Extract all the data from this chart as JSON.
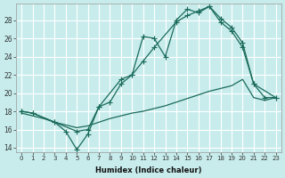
{
  "xlabel": "Humidex (Indice chaleur)",
  "bg_color": "#c8ecec",
  "grid_color": "#ffffff",
  "line_color": "#1a6b5a",
  "xlim": [
    -0.5,
    23.5
  ],
  "ylim": [
    13.5,
    29.8
  ],
  "xticks": [
    0,
    1,
    2,
    3,
    4,
    5,
    6,
    7,
    8,
    9,
    10,
    11,
    12,
    13,
    14,
    15,
    16,
    17,
    18,
    19,
    20,
    21,
    22,
    23
  ],
  "yticks": [
    14,
    16,
    18,
    20,
    22,
    24,
    26,
    28
  ],
  "line1_x": [
    0,
    1,
    3,
    4,
    5,
    6,
    7,
    8,
    9,
    10,
    11,
    12,
    13,
    14,
    15,
    16,
    17,
    18,
    19,
    20,
    21,
    22,
    23
  ],
  "line1_y": [
    18.0,
    17.8,
    16.8,
    15.8,
    13.8,
    15.5,
    18.5,
    19.0,
    21.0,
    22.0,
    26.2,
    26.0,
    24.0,
    28.0,
    29.2,
    28.8,
    29.5,
    28.2,
    27.2,
    25.5,
    21.0,
    19.5,
    19.5
  ],
  "line2_x": [
    0,
    1,
    3,
    5,
    6,
    7,
    9,
    10,
    11,
    12,
    14,
    15,
    16,
    17,
    18,
    19,
    20,
    21,
    23
  ],
  "line2_y": [
    18.0,
    17.8,
    16.8,
    15.8,
    16.0,
    18.5,
    21.5,
    22.0,
    23.5,
    25.0,
    27.8,
    28.5,
    29.0,
    29.5,
    27.8,
    26.8,
    25.0,
    21.0,
    19.5
  ],
  "line3_x": [
    0,
    1,
    2,
    3,
    4,
    5,
    6,
    7,
    8,
    9,
    10,
    11,
    12,
    13,
    14,
    15,
    16,
    17,
    18,
    19,
    20,
    21,
    22,
    23
  ],
  "line3_y": [
    17.8,
    17.5,
    17.2,
    16.8,
    16.5,
    16.2,
    16.4,
    16.8,
    17.2,
    17.5,
    17.8,
    18.0,
    18.3,
    18.6,
    19.0,
    19.4,
    19.8,
    20.2,
    20.5,
    20.8,
    21.5,
    19.5,
    19.2,
    19.5
  ]
}
